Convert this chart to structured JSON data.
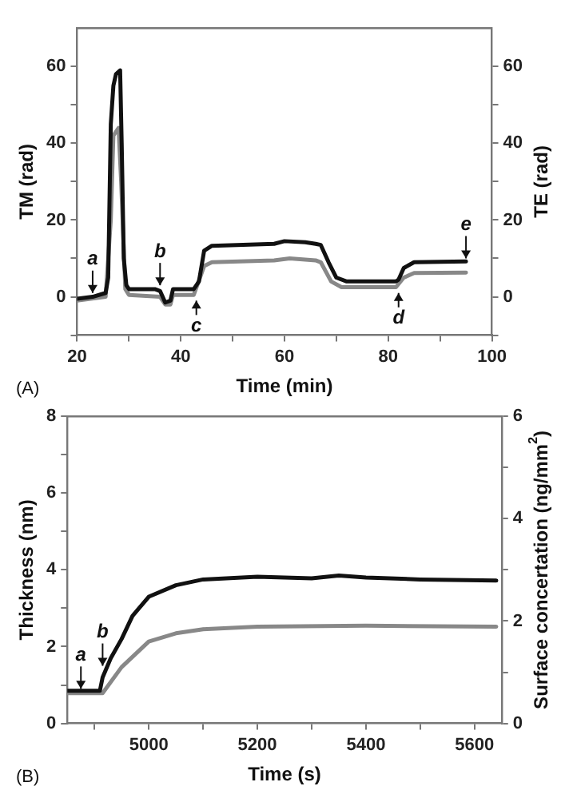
{
  "chart_data": [
    {
      "type": "line",
      "xlabel": "Time (min)",
      "ylabel": "TM (rad)",
      "y2label": "TE (rad)",
      "xlim": [
        20,
        100
      ],
      "xticks": [
        20,
        {
          "value": 30,
          "label": null
        },
        40,
        {
          "value": 50,
          "label": null
        },
        60,
        {
          "value": 70,
          "label": null
        },
        80,
        {
          "value": 90,
          "label": null
        },
        100
      ],
      "ylim": [
        -10,
        70
      ],
      "yticks": [
        {
          "value": -10,
          "label": null
        },
        0,
        {
          "value": 10,
          "label": null
        },
        20,
        {
          "value": 30,
          "label": null
        },
        40,
        {
          "value": 50,
          "label": null
        },
        60
      ],
      "y2lim": [
        -10,
        70
      ],
      "y2ticks": [
        {
          "value": -10,
          "label": null
        },
        0,
        {
          "value": 10,
          "label": null
        },
        20,
        {
          "value": 30,
          "label": null
        },
        40,
        {
          "value": 50,
          "label": null
        },
        60
      ],
      "grid": false,
      "legend": false,
      "series": [
        {
          "color": "#111111",
          "x": [
            20,
            23,
            25.5,
            26,
            26.5,
            27,
            27.5,
            28.3,
            28.6,
            29,
            29.5,
            30,
            35,
            36,
            37,
            38,
            38.5,
            42.5,
            43.5,
            44.5,
            46,
            58,
            60,
            64,
            66,
            67,
            68.5,
            70,
            72,
            81.5,
            82,
            83,
            85,
            95
          ],
          "values": [
            -0.5,
            0,
            1,
            5,
            45,
            55,
            58,
            59,
            40,
            10,
            3,
            2,
            2,
            1.5,
            -1.5,
            -1,
            2,
            2,
            4,
            12,
            13.3,
            13.8,
            14.5,
            14.2,
            13.8,
            13.5,
            9,
            5,
            4,
            4,
            4.5,
            7.5,
            9,
            9.2
          ]
        },
        {
          "color": "#888888",
          "axis": "y2",
          "x": [
            20,
            25.5,
            26.5,
            27,
            28,
            28.5,
            29.3,
            30,
            36,
            37,
            38,
            38.5,
            42.5,
            44.5,
            46,
            58,
            61,
            66,
            67,
            69,
            71,
            81.5,
            83,
            85,
            95
          ],
          "values": [
            -1,
            0,
            20,
            42,
            44,
            30,
            2,
            0.5,
            0,
            -2,
            -2,
            0.5,
            0.5,
            8,
            9,
            9.5,
            10,
            9.5,
            9,
            4,
            2.5,
            2.5,
            5,
            6.2,
            6.3
          ]
        }
      ],
      "annotations": [
        {
          "text": "a",
          "x": 23,
          "y": 1
        },
        {
          "text": "b",
          "x": 36,
          "y": 3
        },
        {
          "text": "c",
          "x": 43,
          "y": -1
        },
        {
          "text": "d",
          "x": 82,
          "y": 1
        },
        {
          "text": "e",
          "x": 95,
          "y": 10
        },
        "(A)"
      ]
    },
    {
      "type": "line",
      "xlabel": "Time (s)",
      "ylabel": "Thickness (nm)",
      "y2label": "Surface concertation (ng/mm$^{2}$)",
      "xlim": [
        4850,
        5650
      ],
      "xticks": [
        {
          "value": 4900,
          "label": null
        },
        5000,
        {
          "value": 5100,
          "label": null
        },
        5200,
        {
          "value": 5300,
          "label": null
        },
        5400,
        {
          "value": 5500,
          "label": null
        },
        5600
      ],
      "ylim": [
        0,
        8
      ],
      "yticks": [
        0,
        {
          "value": 1,
          "label": null
        },
        2,
        {
          "value": 3,
          "label": null
        },
        4,
        {
          "value": 5,
          "label": null
        },
        6,
        {
          "value": 7,
          "label": null
        },
        8
      ],
      "y2lim": [
        0,
        6
      ],
      "y2ticks": [
        0,
        {
          "value": 1,
          "label": null
        },
        2,
        {
          "value": 3,
          "label": null
        },
        4,
        {
          "value": 5,
          "label": null
        },
        6
      ],
      "grid": false,
      "legend": false,
      "series": [
        {
          "color": "#111111",
          "x": [
            4850,
            4910,
            4915,
            4930,
            4950,
            4970,
            5000,
            5050,
            5100,
            5200,
            5300,
            5350,
            5400,
            5500,
            5640
          ],
          "values": [
            0.85,
            0.85,
            1.2,
            1.7,
            2.2,
            2.8,
            3.3,
            3.6,
            3.75,
            3.82,
            3.78,
            3.85,
            3.8,
            3.75,
            3.72
          ]
        },
        {
          "color": "#888888",
          "axis": "y2",
          "x": [
            4850,
            4915,
            4950,
            5000,
            5050,
            5100,
            5200,
            5400,
            5640
          ],
          "values": [
            0.59,
            0.59,
            1.1,
            1.6,
            1.76,
            1.84,
            1.89,
            1.91,
            1.89
          ]
        }
      ],
      "annotations": [
        {
          "text": "a",
          "x": 4875,
          "y": 0.9
        },
        {
          "text": "b",
          "x": 4915,
          "y": 1.5
        },
        "(B)"
      ]
    }
  ]
}
